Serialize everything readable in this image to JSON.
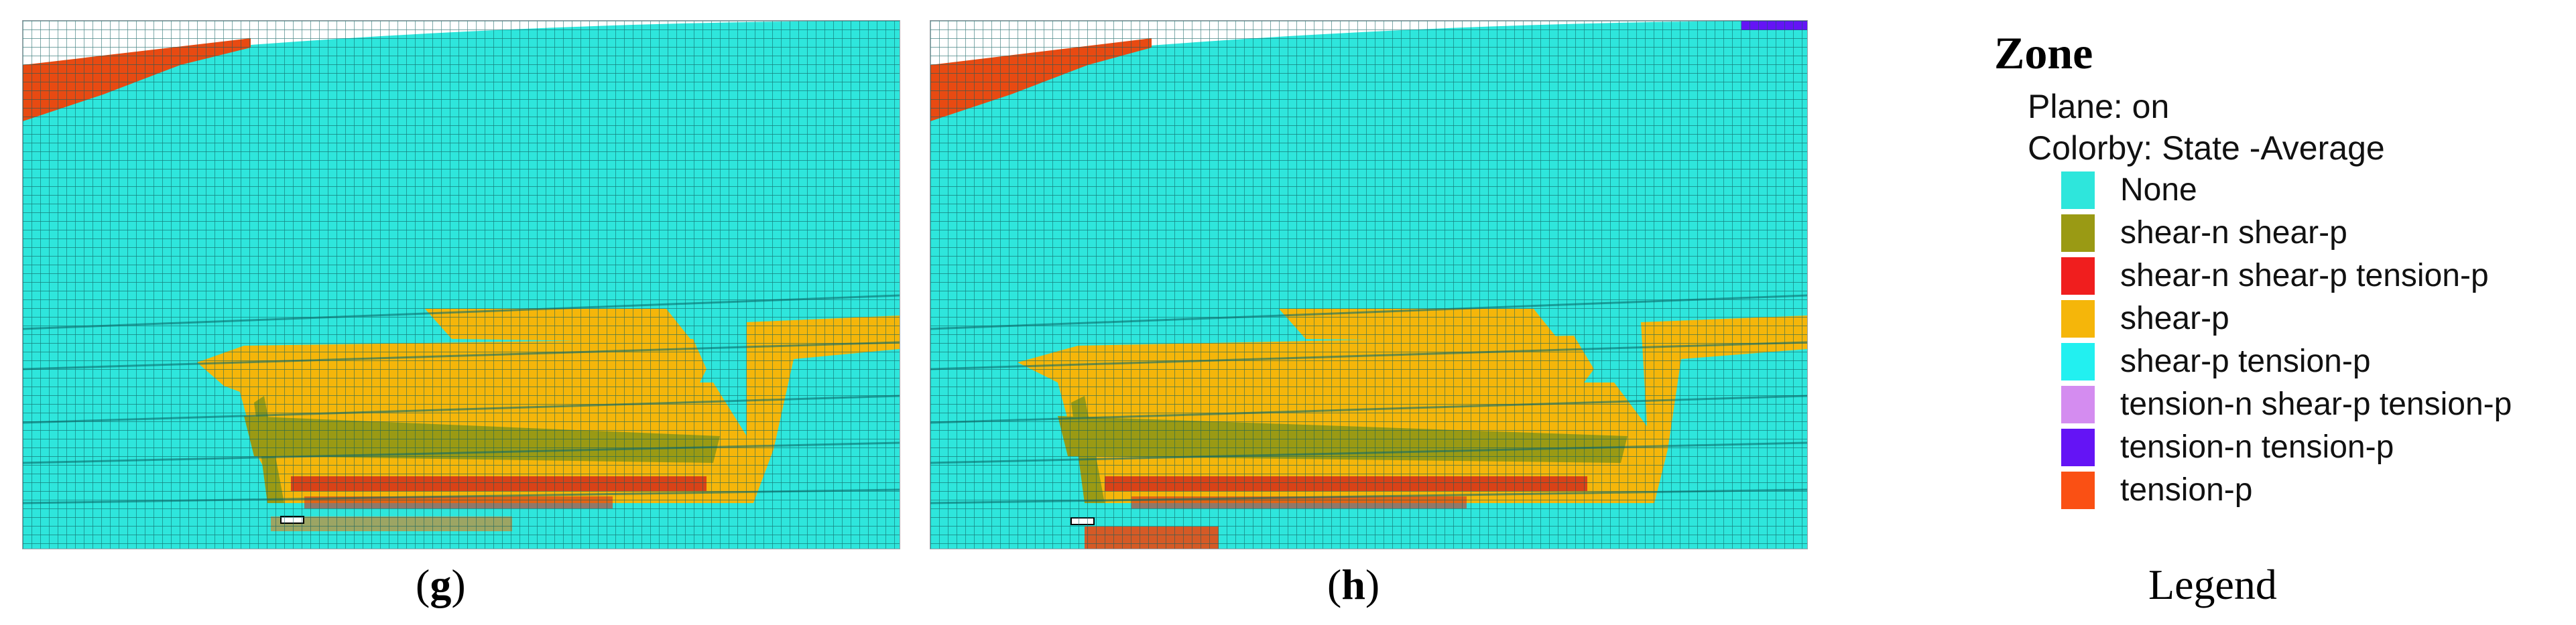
{
  "panels": [
    {
      "id": "g",
      "caption_open": "(",
      "caption_letter": "g",
      "caption_close": ")"
    },
    {
      "id": "h",
      "caption_open": "(",
      "caption_letter": "h",
      "caption_close": ")"
    }
  ],
  "legend": {
    "title": "Zone",
    "plane_line": "Plane: on",
    "colorby_line": "Colorby: State  -Average",
    "caption": "Legend",
    "items": [
      {
        "label": "None",
        "color": "#2ee6dc"
      },
      {
        "label": "shear-n shear-p",
        "color": "#9a9a14"
      },
      {
        "label": "shear-n shear-p tension-p",
        "color": "#f01e1e"
      },
      {
        "label": "shear-p",
        "color": "#f5b60a"
      },
      {
        "label": "shear-p tension-p",
        "color": "#22f0f0"
      },
      {
        "label": "tension-n shear-p tension-p",
        "color": "#d48cf0"
      },
      {
        "label": "tension-n tension-p",
        "color": "#6414f5"
      },
      {
        "label": "tension-p",
        "color": "#fa5014"
      }
    ]
  }
}
